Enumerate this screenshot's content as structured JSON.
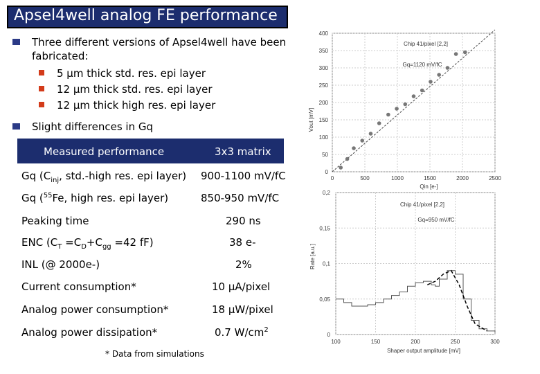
{
  "title": "Apsel4well analog FE performance",
  "bullets": {
    "b1_line1": "Three different versions of Apsel4well have been",
    "b1_line2": "fabricated:",
    "sub1": "5 μm thick std. res. epi layer",
    "sub2": "12 μm thick std. res. epi layer",
    "sub3": "12 μm thick high res. epi layer",
    "b2": "Slight differences in Gq"
  },
  "table": {
    "header_left": "Measured performance",
    "header_right": "3x3 matrix",
    "rows": [
      {
        "label": "Gq (C",
        "sub": "inj",
        "label_end": ", std.-high res. epi layer)",
        "value": "900-1100 mV/fC"
      },
      {
        "label": "Gq (",
        "sup": "55",
        "label_end": "Fe, high res. epi layer)",
        "value": "850-950 mV/fC"
      },
      {
        "label": "Peaking time",
        "value": "290 ns"
      },
      {
        "label": "ENC  (C",
        "sub1": "T",
        "mid1": " =C",
        "sub2": "D",
        "mid2": "+C",
        "sub3": "gg",
        "label_end": " =42 fF)",
        "value": "38 e-"
      },
      {
        "label": "INL (@ 2000e-)",
        "value": "2%"
      },
      {
        "label": "Current consumption*",
        "value": "10 μA/pixel"
      },
      {
        "label": "Analog power consumption*",
        "value": "18 μW/pixel"
      },
      {
        "label": "Analog power dissipation*",
        "value": "0.7 W/cm",
        "value_sup": "2"
      }
    ],
    "footnote": "* Data from simulations"
  },
  "colors": {
    "title_band": "#1c2d6e",
    "bullet_l1": "#2b3a86",
    "bullet_l2": "#d33b1a"
  },
  "chart_data": [
    {
      "type": "scatter",
      "title": "Chip 41/pixel [2,2]",
      "annotation": "Gq=1120 mV/fC",
      "xlabel": "Qin [e-]",
      "ylabel": "Vout [mV]",
      "xlim": [
        0,
        2500
      ],
      "ylim": [
        0,
        400
      ],
      "xticks": [
        "0",
        "500",
        "1000",
        "1500",
        "2000",
        "2500"
      ],
      "yticks": [
        "0",
        "50",
        "100",
        "150",
        "200",
        "250",
        "300",
        "350",
        "400"
      ],
      "x": [
        130,
        230,
        330,
        460,
        590,
        720,
        860,
        990,
        1120,
        1250,
        1380,
        1510,
        1640,
        1770,
        1900,
        2040
      ],
      "y": [
        12,
        37,
        68,
        90,
        110,
        140,
        165,
        182,
        195,
        218,
        235,
        260,
        280,
        300,
        340,
        345
      ],
      "fit": [
        [
          0,
          0
        ],
        [
          2500,
          410
        ]
      ]
    },
    {
      "type": "line",
      "title": "Chip 41/pixel [2,2]",
      "annotation": "Gq=950 mV/fC",
      "xlabel": "Shaper output amplitude [mV]",
      "ylabel": "Rate [a.u.]",
      "xlim": [
        100,
        300
      ],
      "ylim": [
        0,
        0.2
      ],
      "xticks": [
        "100",
        "150",
        "200",
        "250",
        "300"
      ],
      "yticks": [
        "0",
        "0,05",
        "0,1",
        "0,15",
        "0,2"
      ],
      "x": [
        100,
        110,
        120,
        130,
        140,
        150,
        160,
        170,
        180,
        190,
        200,
        210,
        215,
        220,
        225,
        230,
        240,
        250,
        260,
        270,
        280,
        290,
        300
      ],
      "y": [
        0.05,
        0.045,
        0.04,
        0.04,
        0.042,
        0.045,
        0.05,
        0.055,
        0.06,
        0.068,
        0.073,
        0.075,
        0.075,
        0.07,
        0.068,
        0.078,
        0.09,
        0.085,
        0.05,
        0.02,
        0.008,
        0.005,
        0.003
      ],
      "fit_x": [
        215,
        225,
        235,
        245,
        255,
        265,
        275,
        290
      ],
      "fit_y": [
        0.07,
        0.075,
        0.085,
        0.09,
        0.07,
        0.04,
        0.015,
        0.005
      ]
    }
  ]
}
